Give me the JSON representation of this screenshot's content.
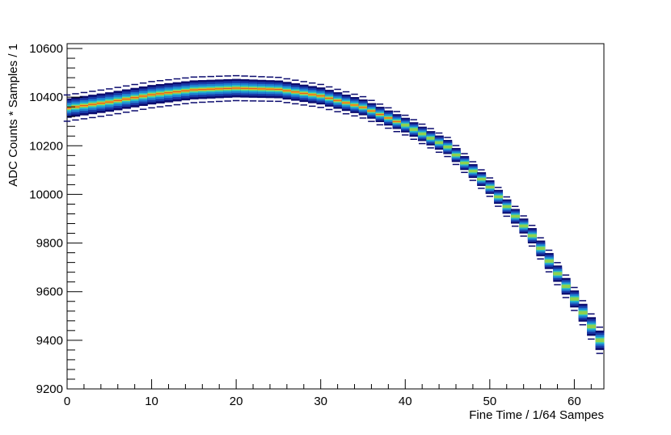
{
  "chart_data": {
    "type": "heatmap",
    "title": "",
    "xlabel": "Fine Time / 1/64 Sampes",
    "ylabel": "ADC Counts * Samples / 1",
    "xlim": [
      0,
      63.5
    ],
    "ylim": [
      9200,
      10620
    ],
    "x_ticks": [
      0,
      10,
      20,
      30,
      40,
      50,
      60
    ],
    "y_ticks": [
      9200,
      9400,
      9600,
      9800,
      10000,
      10200,
      10400,
      10600
    ],
    "grid": false,
    "legend": "none",
    "colormap": [
      "#0b0b6e",
      "#1a3aa8",
      "#1f7fd0",
      "#27c2c8",
      "#8fd14f",
      "#f3c12b",
      "#e0531a"
    ],
    "band_center": {
      "x": [
        0,
        5,
        10,
        15,
        20,
        25,
        30,
        35,
        40,
        45,
        50,
        55,
        60,
        63
      ],
      "y": [
        10355,
        10380,
        10410,
        10430,
        10437,
        10432,
        10405,
        10358,
        10285,
        10195,
        10030,
        9830,
        9570,
        9400
      ]
    },
    "band_half_width": {
      "x": [
        0,
        10,
        20,
        30,
        40,
        50,
        60,
        63
      ],
      "y": [
        40,
        40,
        38,
        35,
        30,
        28,
        35,
        40
      ]
    }
  }
}
